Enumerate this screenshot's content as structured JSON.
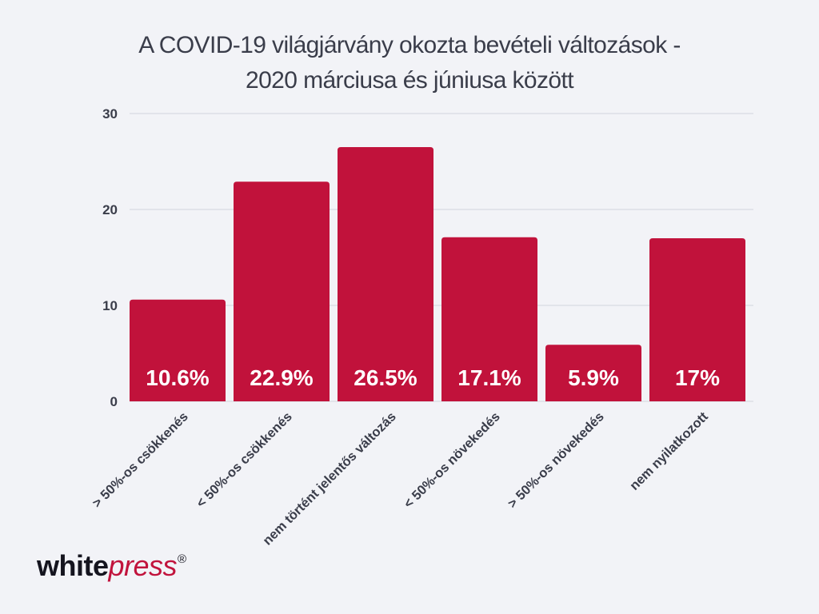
{
  "chart_data": {
    "type": "bar",
    "title_lines": [
      "A COVID-19 világjárvány okozta bevételi változások -",
      "2020 márciusa és júniusa között"
    ],
    "categories": [
      "> 50%-os csökkenés",
      "< 50%-os csökkenés",
      "nem történt jelentős változás",
      "< 50%-os növekedés",
      "> 50%-os növekedés",
      "nem nyilatkozott"
    ],
    "values": [
      10.6,
      22.9,
      26.5,
      17.1,
      5.9,
      17
    ],
    "data_labels": [
      "10.6%",
      "22.9%",
      "26.5%",
      "17.1%",
      "5.9%",
      "17%"
    ],
    "yticks": [
      0,
      10,
      20,
      30
    ],
    "ylim": [
      0,
      30
    ],
    "grid": true,
    "bar_color": "#c1123b",
    "xlabel": "",
    "ylabel": ""
  },
  "brand": {
    "logo_part1": "white",
    "logo_part2": "press",
    "logo_mark": "®",
    "accent_color": "#c1133c"
  }
}
